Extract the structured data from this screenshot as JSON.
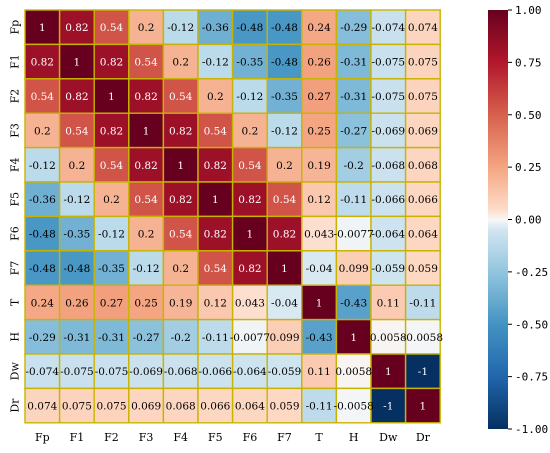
{
  "chart_data": {
    "type": "heatmap",
    "title": "",
    "xlabel": "",
    "ylabel": "",
    "row_labels": [
      "Fp",
      "F1",
      "F2",
      "F3",
      "F4",
      "F5",
      "F6",
      "F7",
      "T",
      "H",
      "Dw",
      "Dr"
    ],
    "col_labels": [
      "Fp",
      "F1",
      "F2",
      "F3",
      "F4",
      "F5",
      "F6",
      "F7",
      "T",
      "H",
      "Dw",
      "Dr"
    ],
    "values": [
      [
        1,
        0.82,
        0.54,
        0.2,
        -0.12,
        -0.36,
        -0.48,
        -0.48,
        0.24,
        -0.29,
        -0.074,
        0.074
      ],
      [
        0.82,
        1,
        0.82,
        0.54,
        0.2,
        -0.12,
        -0.35,
        -0.48,
        0.26,
        -0.31,
        -0.075,
        0.075
      ],
      [
        0.54,
        0.82,
        1,
        0.82,
        0.54,
        0.2,
        -0.12,
        -0.35,
        0.27,
        -0.31,
        -0.075,
        0.075
      ],
      [
        0.2,
        0.54,
        0.82,
        1,
        0.82,
        0.54,
        0.2,
        -0.12,
        0.25,
        -0.27,
        -0.069,
        0.069
      ],
      [
        -0.12,
        0.2,
        0.54,
        0.82,
        1,
        0.82,
        0.54,
        0.2,
        0.19,
        -0.2,
        -0.068,
        0.068
      ],
      [
        -0.36,
        -0.12,
        0.2,
        0.54,
        0.82,
        1,
        0.82,
        0.54,
        0.12,
        -0.11,
        -0.066,
        0.066
      ],
      [
        -0.48,
        -0.35,
        -0.12,
        0.2,
        0.54,
        0.82,
        1,
        0.82,
        0.043,
        -0.0077,
        -0.064,
        0.064
      ],
      [
        -0.48,
        -0.48,
        -0.35,
        -0.12,
        0.2,
        0.54,
        0.82,
        1,
        -0.04,
        0.099,
        -0.059,
        0.059
      ],
      [
        0.24,
        0.26,
        0.27,
        0.25,
        0.19,
        0.12,
        0.043,
        -0.04,
        1,
        -0.43,
        0.11,
        -0.11
      ],
      [
        -0.29,
        -0.31,
        -0.31,
        -0.27,
        -0.2,
        -0.11,
        -0.0077,
        0.099,
        -0.43,
        1,
        0.0058,
        -0.0058
      ],
      [
        -0.074,
        -0.075,
        -0.075,
        -0.069,
        -0.068,
        -0.066,
        -0.064,
        -0.059,
        0.11,
        0.0058,
        1,
        -1
      ],
      [
        0.074,
        0.075,
        0.075,
        0.069,
        0.068,
        0.066,
        0.064,
        0.059,
        -0.11,
        -0.0058,
        -1,
        1
      ]
    ],
    "vmin": -1,
    "vmax": 1,
    "colormap": "RdBu_r",
    "colorbar_ticks": [
      "1.00",
      "0.75",
      "0.50",
      "0.25",
      "0.00",
      "-0.25",
      "-0.50",
      "-0.75",
      "-1.00"
    ],
    "colorbar_tick_values": [
      1,
      0.75,
      0.5,
      0.25,
      0,
      -0.25,
      -0.5,
      -0.75,
      -1
    ],
    "cell_border_color": "#c8b400",
    "legend": "right colorbar",
    "grid": false
  }
}
